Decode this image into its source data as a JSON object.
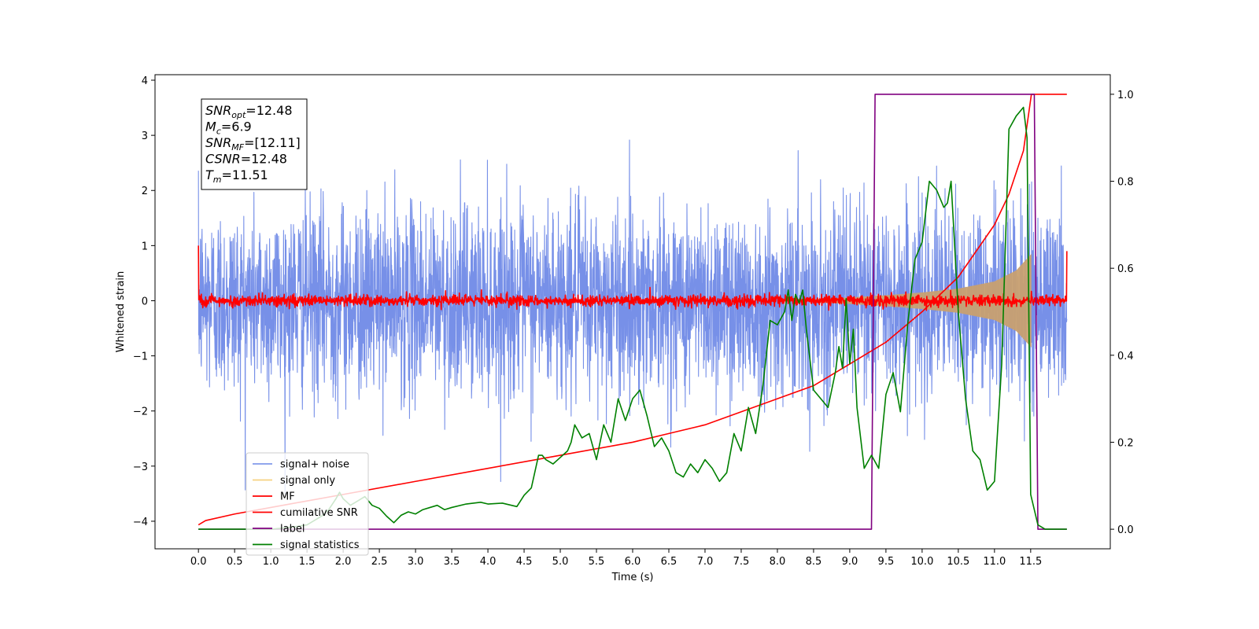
{
  "chart_data": {
    "type": "line",
    "xlabel": "Time (s)",
    "ylabel": "Whitened strain",
    "xlim": [
      -0.6,
      12.6
    ],
    "ylim": [
      -4.5,
      4.1
    ],
    "y2lim": [
      -0.045,
      1.045
    ],
    "x_ticks": [
      0.0,
      0.5,
      1.0,
      1.5,
      2.0,
      2.5,
      3.0,
      3.5,
      4.0,
      4.5,
      5.0,
      5.5,
      6.0,
      6.5,
      7.0,
      7.5,
      8.0,
      8.5,
      9.0,
      9.5,
      10.0,
      10.5,
      11.0,
      11.5
    ],
    "x_tick_labels": [
      "0.0",
      "0.5",
      "1.0",
      "1.5",
      "2.0",
      "2.5",
      "3.0",
      "3.5",
      "4.0",
      "4.5",
      "5.0",
      "5.5",
      "6.0",
      "6.5",
      "7.0",
      "7.5",
      "8.0",
      "8.5",
      "9.0",
      "9.5",
      "10.0",
      "10.5",
      "11.0",
      "11.5"
    ],
    "y_ticks": [
      4,
      3,
      2,
      1,
      0,
      -1,
      -2,
      -3,
      -4
    ],
    "y_tick_labels": [
      "4",
      "3",
      "2",
      "1",
      "0",
      "−1",
      "−2",
      "−3",
      "−4"
    ],
    "y2_ticks": [
      1.0,
      0.8,
      0.6,
      0.4,
      0.2,
      0.0
    ],
    "y2_tick_labels": [
      "1.0",
      "0.8",
      "0.6",
      "0.4",
      "0.2",
      "0.0"
    ],
    "grid": false,
    "legend_position": "lower-left",
    "series": [
      {
        "name": "signal+ noise",
        "color": "#6b87e6",
        "axis": "left",
        "kind": "noise",
        "x_range": [
          0.0,
          12.0
        ],
        "std": 0.85,
        "range_approx": [
          -3.5,
          3.65
        ]
      },
      {
        "name": "signal only",
        "color": "#f5c96b",
        "axis": "left",
        "kind": "chirp",
        "x_range": [
          8.5,
          11.51
        ],
        "envelope": [
          [
            8.5,
            0.03
          ],
          [
            9.0,
            0.06
          ],
          [
            9.5,
            0.1
          ],
          [
            10.0,
            0.15
          ],
          [
            10.5,
            0.22
          ],
          [
            11.0,
            0.35
          ],
          [
            11.3,
            0.55
          ],
          [
            11.51,
            0.85
          ]
        ]
      },
      {
        "name": "MF",
        "color": "#ff0000",
        "axis": "left",
        "kind": "mf",
        "x_range": [
          0.0,
          12.0
        ],
        "std": 0.05,
        "start_spike": 1.0,
        "end_spike": 0.9
      },
      {
        "name": "cumilative SNR",
        "color": "#ff0000",
        "axis": "right",
        "kind": "line",
        "x": [
          0.0,
          0.1,
          0.5,
          1.0,
          2.0,
          3.0,
          4.0,
          5.0,
          6.0,
          6.5,
          7.0,
          7.5,
          8.0,
          8.5,
          9.0,
          9.5,
          10.0,
          10.5,
          11.0,
          11.2,
          11.4,
          11.51,
          12.0
        ],
        "y": [
          0.01,
          0.02,
          0.035,
          0.05,
          0.08,
          0.11,
          0.14,
          0.17,
          0.2,
          0.22,
          0.24,
          0.27,
          0.3,
          0.33,
          0.38,
          0.43,
          0.5,
          0.58,
          0.7,
          0.77,
          0.87,
          1.0,
          1.0
        ]
      },
      {
        "name": "label",
        "color": "#800080",
        "axis": "right",
        "kind": "line",
        "x": [
          0.0,
          9.3,
          9.35,
          11.55,
          11.6,
          12.0
        ],
        "y": [
          0.0,
          0.0,
          1.0,
          1.0,
          0.0,
          0.0
        ]
      },
      {
        "name": "signal statistics",
        "color": "#008000",
        "axis": "right",
        "kind": "line",
        "x": [
          0.0,
          1.0,
          1.3,
          1.5,
          1.6,
          1.7,
          1.8,
          1.9,
          1.95,
          2.0,
          2.1,
          2.2,
          2.3,
          2.4,
          2.5,
          2.6,
          2.7,
          2.8,
          2.9,
          3.0,
          3.1,
          3.2,
          3.3,
          3.4,
          3.5,
          3.7,
          3.9,
          4.0,
          4.2,
          4.4,
          4.5,
          4.6,
          4.7,
          4.75,
          4.8,
          4.9,
          5.0,
          5.1,
          5.15,
          5.2,
          5.3,
          5.4,
          5.5,
          5.6,
          5.7,
          5.8,
          5.9,
          6.0,
          6.1,
          6.2,
          6.3,
          6.4,
          6.5,
          6.6,
          6.7,
          6.8,
          6.9,
          7.0,
          7.1,
          7.2,
          7.3,
          7.4,
          7.5,
          7.6,
          7.7,
          7.8,
          7.9,
          8.0,
          8.1,
          8.15,
          8.2,
          8.25,
          8.3,
          8.35,
          8.4,
          8.5,
          8.6,
          8.7,
          8.8,
          8.85,
          8.9,
          8.95,
          9.0,
          9.05,
          9.1,
          9.2,
          9.3,
          9.4,
          9.5,
          9.6,
          9.7,
          9.8,
          9.9,
          10.0,
          10.1,
          10.2,
          10.3,
          10.35,
          10.4,
          10.5,
          10.6,
          10.7,
          10.8,
          10.9,
          11.0,
          11.1,
          11.2,
          11.3,
          11.4,
          11.45,
          11.5,
          11.6,
          11.7,
          11.8,
          12.0
        ],
        "y": [
          0.0,
          0.0,
          0.005,
          0.01,
          0.02,
          0.03,
          0.045,
          0.07,
          0.085,
          0.07,
          0.055,
          0.065,
          0.075,
          0.055,
          0.048,
          0.03,
          0.015,
          0.032,
          0.04,
          0.035,
          0.045,
          0.05,
          0.055,
          0.045,
          0.05,
          0.058,
          0.062,
          0.058,
          0.06,
          0.052,
          0.078,
          0.095,
          0.17,
          0.17,
          0.16,
          0.15,
          0.165,
          0.18,
          0.2,
          0.24,
          0.21,
          0.22,
          0.16,
          0.24,
          0.2,
          0.3,
          0.25,
          0.3,
          0.32,
          0.26,
          0.19,
          0.21,
          0.18,
          0.13,
          0.12,
          0.15,
          0.13,
          0.16,
          0.14,
          0.11,
          0.13,
          0.22,
          0.18,
          0.28,
          0.22,
          0.33,
          0.48,
          0.47,
          0.5,
          0.55,
          0.48,
          0.54,
          0.52,
          0.55,
          0.46,
          0.32,
          0.3,
          0.28,
          0.36,
          0.42,
          0.37,
          0.53,
          0.38,
          0.46,
          0.28,
          0.14,
          0.17,
          0.14,
          0.31,
          0.36,
          0.27,
          0.47,
          0.62,
          0.66,
          0.8,
          0.78,
          0.74,
          0.75,
          0.8,
          0.5,
          0.3,
          0.18,
          0.16,
          0.09,
          0.11,
          0.38,
          0.92,
          0.95,
          0.97,
          0.9,
          0.08,
          0.01,
          0.0,
          0.0,
          0.0
        ]
      }
    ],
    "legend": [
      {
        "label": "signal+ noise",
        "color": "#6b87e6",
        "opacity": 0.85
      },
      {
        "label": "signal only",
        "color": "#f5c96b",
        "opacity": 0.85
      },
      {
        "label": "MF",
        "color": "#ff0000",
        "opacity": 1
      },
      {
        "label": "cumilative SNR",
        "color": "#ff0000",
        "opacity": 1
      },
      {
        "label": "label",
        "color": "#800080",
        "opacity": 1
      },
      {
        "label": "signal statistics",
        "color": "#008000",
        "opacity": 1
      }
    ],
    "annotations": {
      "snr_opt": {
        "base": "SNR",
        "sub": "opt",
        "value": "=12.48"
      },
      "mc": {
        "base": "M",
        "sub": "c",
        "value": "=6.9"
      },
      "snr_mf": {
        "base": "SNR",
        "sub": "MF",
        "value": "=[12.11]"
      },
      "csnr": {
        "base": "CSNR",
        "sub": "",
        "value": "=12.48"
      },
      "tm": {
        "base": "T",
        "sub": "m",
        "value": "=11.51"
      }
    }
  }
}
